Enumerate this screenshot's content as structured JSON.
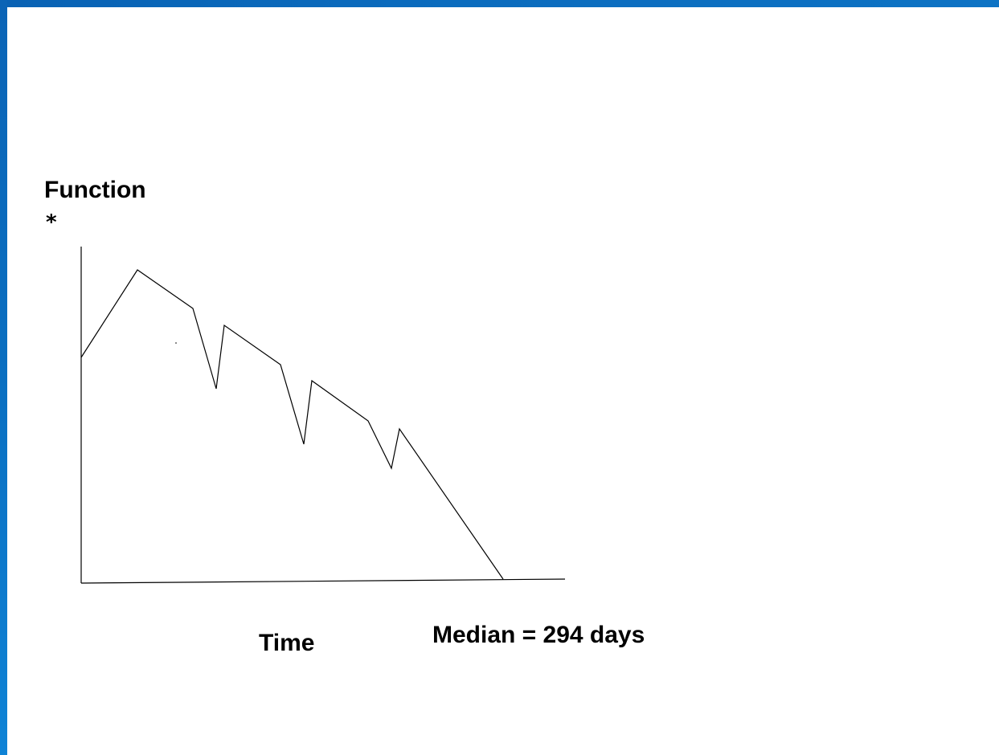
{
  "chart_data": {
    "type": "line",
    "title": "",
    "ylabel": "Function",
    "ylabel_marker": "*",
    "xlabel": "Time",
    "annotation": "Median = 294 days",
    "grid": false,
    "legend": "none",
    "axis_color": "#000000",
    "line_color": "#000000",
    "xlim": [
      0,
      604
    ],
    "ylim": [
      0,
      418
    ],
    "x": [
      0,
      70,
      139,
      168,
      178,
      248,
      277,
      287,
      357,
      386,
      396,
      525
    ],
    "y": [
      280,
      389,
      341,
      241,
      320,
      271,
      172,
      251,
      201,
      142,
      191,
      4
    ]
  },
  "frame": {
    "border_color": "#0b6bbd"
  }
}
